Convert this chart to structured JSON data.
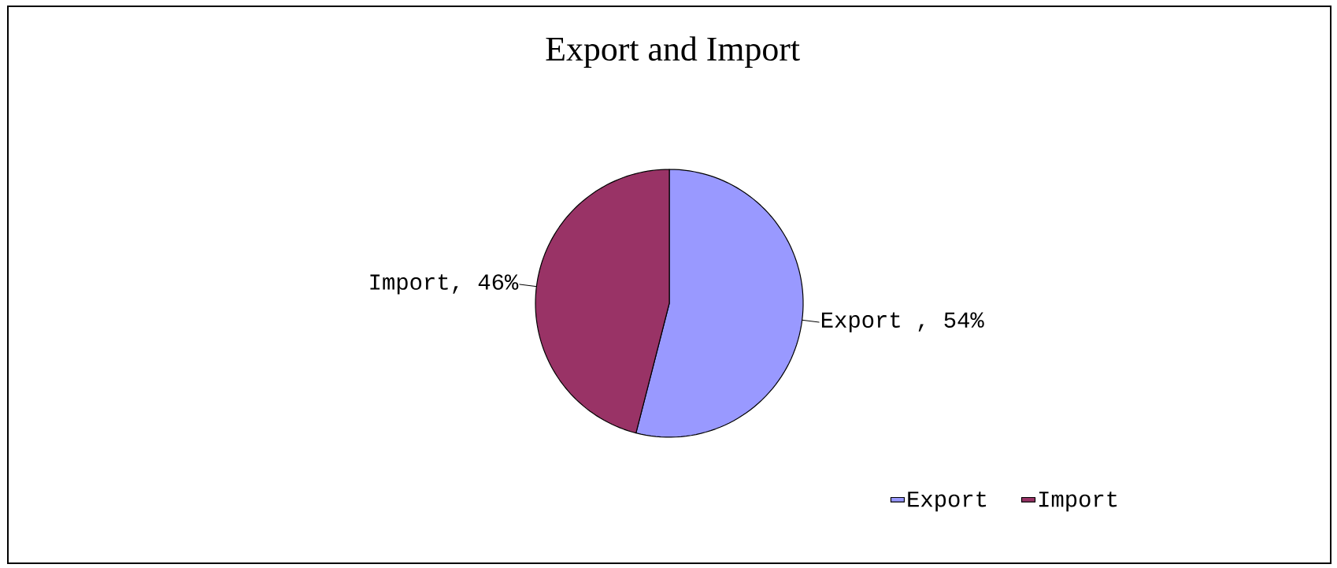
{
  "chart_data": {
    "type": "pie",
    "title": "Export and Import",
    "categories": [
      "Export",
      "Import"
    ],
    "values": [
      54,
      46
    ],
    "colors": [
      "#9999ff",
      "#993366"
    ],
    "value_labels": [
      "Export , 54%",
      "Import, 46%"
    ],
    "legend": "bottom right"
  }
}
